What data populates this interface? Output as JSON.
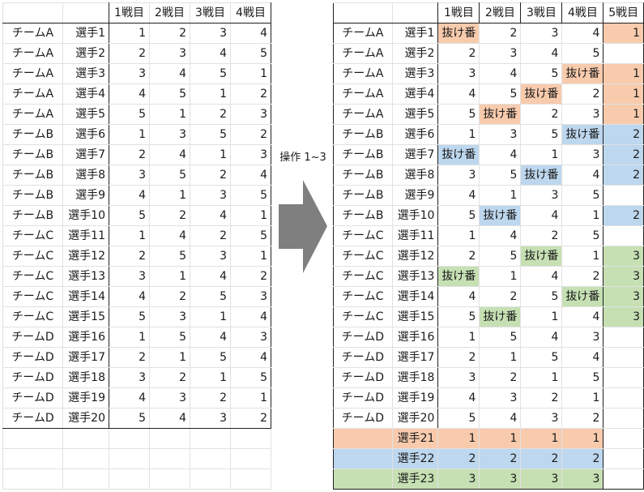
{
  "colors": {
    "orange": "#f8cbad",
    "blue": "#bdd7ee",
    "green": "#c6e0b4",
    "arrow": "#7f7f7f"
  },
  "operation_label": "操作 1~3",
  "arrow_icon": "right-arrow-icon",
  "left_table": {
    "headers": [
      "1戦目",
      "2戦目",
      "3戦目",
      "4戦目"
    ],
    "rows": [
      {
        "team": "チームA",
        "player": "選手1",
        "scores": [
          "1",
          "2",
          "3",
          "4"
        ]
      },
      {
        "team": "チームA",
        "player": "選手2",
        "scores": [
          "2",
          "3",
          "4",
          "5"
        ]
      },
      {
        "team": "チームA",
        "player": "選手3",
        "scores": [
          "3",
          "4",
          "5",
          "1"
        ]
      },
      {
        "team": "チームA",
        "player": "選手4",
        "scores": [
          "4",
          "5",
          "1",
          "2"
        ]
      },
      {
        "team": "チームA",
        "player": "選手5",
        "scores": [
          "5",
          "1",
          "2",
          "3"
        ]
      },
      {
        "team": "チームB",
        "player": "選手6",
        "scores": [
          "1",
          "3",
          "5",
          "2"
        ]
      },
      {
        "team": "チームB",
        "player": "選手7",
        "scores": [
          "2",
          "4",
          "1",
          "3"
        ]
      },
      {
        "team": "チームB",
        "player": "選手8",
        "scores": [
          "3",
          "5",
          "2",
          "4"
        ]
      },
      {
        "team": "チームB",
        "player": "選手9",
        "scores": [
          "4",
          "1",
          "3",
          "5"
        ]
      },
      {
        "team": "チームB",
        "player": "選手10",
        "scores": [
          "5",
          "2",
          "4",
          "1"
        ]
      },
      {
        "team": "チームC",
        "player": "選手11",
        "scores": [
          "1",
          "4",
          "2",
          "5"
        ]
      },
      {
        "team": "チームC",
        "player": "選手12",
        "scores": [
          "2",
          "5",
          "3",
          "1"
        ]
      },
      {
        "team": "チームC",
        "player": "選手13",
        "scores": [
          "3",
          "1",
          "4",
          "2"
        ]
      },
      {
        "team": "チームC",
        "player": "選手14",
        "scores": [
          "4",
          "2",
          "5",
          "3"
        ]
      },
      {
        "team": "チームC",
        "player": "選手15",
        "scores": [
          "5",
          "3",
          "1",
          "4"
        ]
      },
      {
        "team": "チームD",
        "player": "選手16",
        "scores": [
          "1",
          "5",
          "4",
          "3"
        ]
      },
      {
        "team": "チームD",
        "player": "選手17",
        "scores": [
          "2",
          "1",
          "5",
          "4"
        ]
      },
      {
        "team": "チームD",
        "player": "選手18",
        "scores": [
          "3",
          "2",
          "1",
          "5"
        ]
      },
      {
        "team": "チームD",
        "player": "選手19",
        "scores": [
          "4",
          "3",
          "2",
          "1"
        ]
      },
      {
        "team": "チームD",
        "player": "選手20",
        "scores": [
          "5",
          "4",
          "3",
          "2"
        ]
      }
    ]
  },
  "right_table": {
    "headers": [
      "1戦目",
      "2戦目",
      "3戦目",
      "4戦目",
      "5戦目"
    ],
    "rows": [
      {
        "team": "チームA",
        "player": "選手1",
        "cells": [
          {
            "v": "抜け番",
            "c": "orange"
          },
          {
            "v": "2"
          },
          {
            "v": "3"
          },
          {
            "v": "4"
          },
          {
            "v": "1",
            "c": "orange"
          }
        ]
      },
      {
        "team": "チームA",
        "player": "選手2",
        "cells": [
          {
            "v": "2"
          },
          {
            "v": "3"
          },
          {
            "v": "4"
          },
          {
            "v": "5"
          },
          {
            "v": ""
          }
        ]
      },
      {
        "team": "チームA",
        "player": "選手3",
        "cells": [
          {
            "v": "3"
          },
          {
            "v": "4"
          },
          {
            "v": "5"
          },
          {
            "v": "抜け番",
            "c": "orange"
          },
          {
            "v": "1",
            "c": "orange"
          }
        ]
      },
      {
        "team": "チームA",
        "player": "選手4",
        "cells": [
          {
            "v": "4"
          },
          {
            "v": "5"
          },
          {
            "v": "抜け番",
            "c": "orange"
          },
          {
            "v": "2"
          },
          {
            "v": "1",
            "c": "orange"
          }
        ]
      },
      {
        "team": "チームA",
        "player": "選手5",
        "cells": [
          {
            "v": "5"
          },
          {
            "v": "抜け番",
            "c": "orange"
          },
          {
            "v": "2"
          },
          {
            "v": "3"
          },
          {
            "v": "1",
            "c": "orange"
          }
        ]
      },
      {
        "team": "チームB",
        "player": "選手6",
        "cells": [
          {
            "v": "1"
          },
          {
            "v": "3"
          },
          {
            "v": "5"
          },
          {
            "v": "抜け番",
            "c": "blue"
          },
          {
            "v": "2",
            "c": "blue"
          }
        ]
      },
      {
        "team": "チームB",
        "player": "選手7",
        "cells": [
          {
            "v": "抜け番",
            "c": "blue"
          },
          {
            "v": "4"
          },
          {
            "v": "1"
          },
          {
            "v": "3"
          },
          {
            "v": "2",
            "c": "blue"
          }
        ]
      },
      {
        "team": "チームB",
        "player": "選手8",
        "cells": [
          {
            "v": "3"
          },
          {
            "v": "5"
          },
          {
            "v": "抜け番",
            "c": "blue"
          },
          {
            "v": "4"
          },
          {
            "v": "2",
            "c": "blue"
          }
        ]
      },
      {
        "team": "チームB",
        "player": "選手9",
        "cells": [
          {
            "v": "4"
          },
          {
            "v": "1"
          },
          {
            "v": "3"
          },
          {
            "v": "5"
          },
          {
            "v": ""
          }
        ]
      },
      {
        "team": "チームB",
        "player": "選手10",
        "cells": [
          {
            "v": "5"
          },
          {
            "v": "抜け番",
            "c": "blue"
          },
          {
            "v": "4"
          },
          {
            "v": "1"
          },
          {
            "v": "2",
            "c": "blue"
          }
        ]
      },
      {
        "team": "チームC",
        "player": "選手11",
        "cells": [
          {
            "v": "1"
          },
          {
            "v": "4"
          },
          {
            "v": "2"
          },
          {
            "v": "5"
          },
          {
            "v": ""
          }
        ]
      },
      {
        "team": "チームC",
        "player": "選手12",
        "cells": [
          {
            "v": "2"
          },
          {
            "v": "5"
          },
          {
            "v": "抜け番",
            "c": "green"
          },
          {
            "v": "1"
          },
          {
            "v": "3",
            "c": "green"
          }
        ]
      },
      {
        "team": "チームC",
        "player": "選手13",
        "cells": [
          {
            "v": "抜け番",
            "c": "green"
          },
          {
            "v": "1"
          },
          {
            "v": "4"
          },
          {
            "v": "2"
          },
          {
            "v": "3",
            "c": "green"
          }
        ]
      },
      {
        "team": "チームC",
        "player": "選手14",
        "cells": [
          {
            "v": "4"
          },
          {
            "v": "2"
          },
          {
            "v": "5"
          },
          {
            "v": "抜け番",
            "c": "green"
          },
          {
            "v": "3",
            "c": "green"
          }
        ]
      },
      {
        "team": "チームC",
        "player": "選手15",
        "cells": [
          {
            "v": "5"
          },
          {
            "v": "抜け番",
            "c": "green"
          },
          {
            "v": "1"
          },
          {
            "v": "4"
          },
          {
            "v": "3",
            "c": "green"
          }
        ]
      },
      {
        "team": "チームD",
        "player": "選手16",
        "cells": [
          {
            "v": "1"
          },
          {
            "v": "5"
          },
          {
            "v": "4"
          },
          {
            "v": "3"
          },
          {
            "v": ""
          }
        ]
      },
      {
        "team": "チームD",
        "player": "選手17",
        "cells": [
          {
            "v": "2"
          },
          {
            "v": "1"
          },
          {
            "v": "5"
          },
          {
            "v": "4"
          },
          {
            "v": ""
          }
        ]
      },
      {
        "team": "チームD",
        "player": "選手18",
        "cells": [
          {
            "v": "3"
          },
          {
            "v": "2"
          },
          {
            "v": "1"
          },
          {
            "v": "5"
          },
          {
            "v": ""
          }
        ]
      },
      {
        "team": "チームD",
        "player": "選手19",
        "cells": [
          {
            "v": "4"
          },
          {
            "v": "3"
          },
          {
            "v": "2"
          },
          {
            "v": "1"
          },
          {
            "v": ""
          }
        ]
      },
      {
        "team": "チームD",
        "player": "選手20",
        "cells": [
          {
            "v": "5"
          },
          {
            "v": "4"
          },
          {
            "v": "3"
          },
          {
            "v": "2"
          },
          {
            "v": ""
          }
        ]
      }
    ],
    "extra_rows": [
      {
        "player": "選手21",
        "color": "orange",
        "scores": [
          "1",
          "1",
          "1",
          "1"
        ]
      },
      {
        "player": "選手22",
        "color": "blue",
        "scores": [
          "2",
          "2",
          "2",
          "2"
        ]
      },
      {
        "player": "選手23",
        "color": "green",
        "scores": [
          "3",
          "3",
          "3",
          "3"
        ]
      }
    ]
  }
}
